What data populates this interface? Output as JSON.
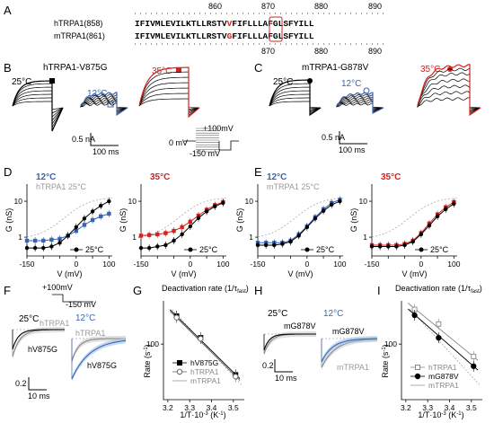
{
  "panel_letters": [
    "A",
    "B",
    "C",
    "D",
    "E",
    "F",
    "G",
    "H",
    "I"
  ],
  "colors": {
    "red": "#d62020",
    "blue": "#3b64b0",
    "lightblue": "#9ec3ea",
    "gray": "#999999",
    "black": "#000000"
  },
  "A": {
    "top_ticks": [
      "860",
      "870",
      "880",
      "890"
    ],
    "bottom_ticks": [
      "870",
      "880",
      "890"
    ],
    "h_label": "hTRPA1(858)",
    "m_label": "mTRPA1(861)",
    "h_seq_pre": "IFIVMLEVILKTLLRSTV",
    "h_seq_red": "V",
    "h_seq_post": "FIFLLLAFGLSFYILL",
    "m_seq_pre": "IFIVMLEVILKTLLRSTV",
    "m_seq_red": "G",
    "m_seq_post": "FIFLLLAFGLSFYILL"
  },
  "B": {
    "title": "hTRPA1-V875G",
    "t25": "25°C",
    "t12": "12°C",
    "t35": "35°C",
    "scale_i": "0.5 nA",
    "scale_t": "100 ms"
  },
  "C": {
    "title": "mTRPA1-G878V",
    "t25": "25°C",
    "t12": "12°C",
    "t35": "35°C",
    "scale_i": "0.5 nA",
    "scale_t": "100 ms"
  },
  "protocol": {
    "v_hi": "+100mV",
    "v_base": "0 mV",
    "v_lo": "-150 mV"
  },
  "D": {
    "t12": "12°C",
    "ref": "hTRPA1 25°C",
    "t35": "35°C",
    "legend": "25°C",
    "ylabel": "G (nS)",
    "xlabel": "V (mV)",
    "xticks": [
      "-150",
      "-100",
      "-50",
      "0",
      "50",
      "100"
    ],
    "yticks": [
      "1",
      "10"
    ]
  },
  "E": {
    "t12": "12°C",
    "ref": "mTRPA1 25°C",
    "t35": "35°C",
    "legend": "25°C",
    "ylabel": "G (nS)",
    "xlabel": "V (mV)",
    "xticks": [
      "-150",
      "-100",
      "-50",
      "0",
      "50",
      "100"
    ],
    "yticks": [
      "1",
      "10"
    ]
  },
  "F": {
    "v_hi": "+100mV",
    "v_lo": "-150 mV",
    "t25": "25°C",
    "t12": "12°C",
    "wt": "hTRPA1",
    "mut": "hV875G",
    "scale_y": "0.2",
    "scale_x": "10 ms"
  },
  "G": {
    "title": "Deactivation rate (1/τ",
    "title_sub": "fast",
    "title_end": ")",
    "ylabel": "Rate (s",
    "ylabel_sup": "-1",
    "ylabel_end": ")",
    "xlabel": "1/T·10",
    "xlabel_sup": "-3",
    "xlabel_end": " (K",
    "xlabel_sup2": "-1",
    "xlabel_end2": ")",
    "xticks": [
      "3.2",
      "3.3",
      "3.4",
      "3.5"
    ],
    "yticks": [
      "100"
    ],
    "legend": [
      "hV875G",
      "hTRPA1",
      "mTRPA1"
    ]
  },
  "H": {
    "t25": "25°C",
    "t12": "12°C",
    "wt": "mTRPA1",
    "mut": "mG878V",
    "scale_y": "0.2",
    "scale_x": "10 ms"
  },
  "I": {
    "title": "Deactivation rate (1/τ",
    "title_sub": "fast",
    "title_end": ")",
    "ylabel": "Rate (s",
    "ylabel_sup": "-1",
    "ylabel_end": ")",
    "xlabel": "1/T·10",
    "xlabel_sup": "-3",
    "xlabel_end": " (K",
    "xlabel_sup2": "-1",
    "xlabel_end2": ")",
    "xticks": [
      "3.2",
      "3.3",
      "3.4",
      "3.5"
    ],
    "yticks": [
      "100"
    ],
    "legend": [
      "hTRPA1",
      "mG878V",
      "mTRPA1"
    ]
  },
  "chart_data": [
    {
      "type": "line",
      "panel": "D-left",
      "xlabel": "V (mV)",
      "ylabel": "G (nS)",
      "xlim": [
        -150,
        110
      ],
      "ylim": [
        0.3,
        30
      ],
      "yscale": "log",
      "series": [
        {
          "name": "12°C",
          "x": [
            -150,
            -125,
            -100,
            -75,
            -50,
            -25,
            0,
            25,
            50,
            75,
            100
          ],
          "y": [
            0.8,
            0.8,
            0.8,
            0.85,
            0.9,
            1.1,
            1.5,
            2.2,
            3.0,
            3.8,
            4.5
          ]
        },
        {
          "name": "25°C",
          "x": [
            -150,
            -125,
            -100,
            -75,
            -50,
            -25,
            0,
            25,
            50,
            75,
            100
          ],
          "y": [
            0.5,
            0.5,
            0.5,
            0.55,
            0.7,
            1.1,
            1.9,
            3.3,
            5.2,
            7.5,
            10
          ]
        }
      ]
    },
    {
      "type": "line",
      "panel": "D-right",
      "xlabel": "V (mV)",
      "ylabel": "G (nS)",
      "xlim": [
        -150,
        110
      ],
      "ylim": [
        0.3,
        30
      ],
      "yscale": "log",
      "series": [
        {
          "name": "35°C",
          "x": [
            -150,
            -125,
            -100,
            -75,
            -50,
            -25,
            0,
            25,
            50,
            75,
            100
          ],
          "y": [
            1.1,
            1.15,
            1.2,
            1.3,
            1.5,
            1.9,
            2.7,
            4.0,
            5.8,
            7.8,
            9.5
          ]
        },
        {
          "name": "25°C",
          "x": [
            -150,
            -125,
            -100,
            -75,
            -50,
            -25,
            0,
            25,
            50,
            75,
            100
          ],
          "y": [
            0.5,
            0.5,
            0.55,
            0.6,
            0.8,
            1.2,
            2.0,
            3.4,
            5.2,
            7.2,
            9.0
          ]
        }
      ]
    },
    {
      "type": "line",
      "panel": "E-left",
      "xlabel": "V (mV)",
      "ylabel": "G (nS)",
      "xlim": [
        -150,
        110
      ],
      "ylim": [
        0.3,
        30
      ],
      "yscale": "log",
      "series": [
        {
          "name": "12°C",
          "x": [
            -150,
            -125,
            -100,
            -75,
            -50,
            -25,
            0,
            25,
            50,
            75,
            100
          ],
          "y": [
            0.7,
            0.7,
            0.7,
            0.7,
            0.8,
            1.2,
            2.0,
            3.6,
            6.0,
            9.0,
            11
          ]
        },
        {
          "name": "25°C",
          "x": [
            -150,
            -125,
            -100,
            -75,
            -50,
            -25,
            0,
            25,
            50,
            75,
            100
          ],
          "y": [
            0.6,
            0.6,
            0.6,
            0.65,
            0.75,
            1.1,
            1.9,
            3.3,
            5.4,
            8.0,
            10
          ]
        }
      ]
    },
    {
      "type": "line",
      "panel": "E-right",
      "xlabel": "V (mV)",
      "ylabel": "G (nS)",
      "xlim": [
        -150,
        110
      ],
      "ylim": [
        0.3,
        30
      ],
      "yscale": "log",
      "series": [
        {
          "name": "35°C",
          "x": [
            -150,
            -125,
            -100,
            -75,
            -50,
            -25,
            0,
            25,
            50,
            75,
            100
          ],
          "y": [
            0.6,
            0.6,
            0.6,
            0.6,
            0.65,
            0.8,
            1.3,
            2.4,
            4.3,
            6.8,
            9.5
          ]
        },
        {
          "name": "25°C",
          "x": [
            -150,
            -125,
            -100,
            -75,
            -50,
            -25,
            0,
            25,
            50,
            75,
            100
          ],
          "y": [
            0.55,
            0.55,
            0.55,
            0.55,
            0.6,
            0.75,
            1.2,
            2.1,
            3.8,
            6.0,
            8.5
          ]
        }
      ]
    },
    {
      "type": "scatter",
      "panel": "G",
      "xlabel": "1/T·10-3 (K-1)",
      "ylabel": "Rate (s-1)",
      "xlim": [
        3.18,
        3.55
      ],
      "ylim": [
        10,
        600
      ],
      "yscale": "log",
      "series": [
        {
          "name": "hV875G",
          "x": [
            3.24,
            3.35,
            3.51
          ],
          "y": [
            320,
            130,
            28
          ]
        },
        {
          "name": "hTRPA1",
          "x": [
            3.24,
            3.35,
            3.51
          ],
          "y": [
            300,
            125,
            26
          ]
        }
      ]
    },
    {
      "type": "scatter",
      "panel": "I",
      "xlabel": "1/T·10-3 (K-1)",
      "ylabel": "Rate (s-1)",
      "xlim": [
        3.18,
        3.55
      ],
      "ylim": [
        10,
        600
      ],
      "yscale": "log",
      "series": [
        {
          "name": "hTRPA1",
          "x": [
            3.24,
            3.35,
            3.51
          ],
          "y": [
            420,
            230,
            60
          ]
        },
        {
          "name": "mG878V",
          "x": [
            3.24,
            3.35,
            3.51
          ],
          "y": [
            330,
            130,
            40
          ]
        }
      ]
    }
  ]
}
